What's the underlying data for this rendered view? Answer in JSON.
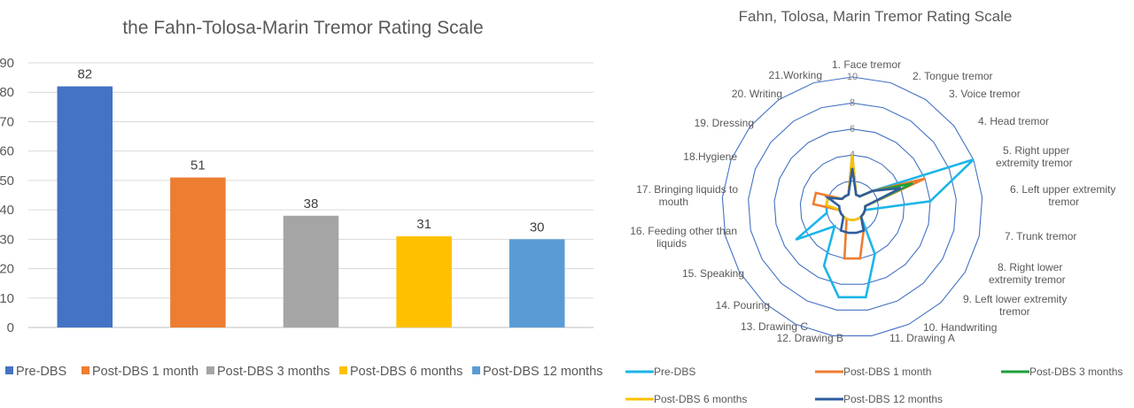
{
  "chart_data": [
    {
      "type": "bar",
      "title": "the Fahn-Tolosa-Marin Tremor Rating Scale",
      "categories": [
        "Pre-DBS",
        "Post-DBS 1 month",
        "Post-DBS 3 months",
        "Post-DBS 6 months",
        "Post-DBS 12 months"
      ],
      "values": [
        82,
        51,
        38,
        31,
        30
      ],
      "data_labels": [
        "82",
        "51",
        "38",
        "31",
        "30"
      ],
      "colors": [
        "#4472C4",
        "#ED7D31",
        "#A5A5A5",
        "#FFC000",
        "#5B9BD5"
      ],
      "ylim": [
        0,
        90
      ],
      "yticks": [
        "0",
        "10",
        "20",
        "30",
        "40",
        "50",
        "60",
        "70",
        "80",
        "90"
      ],
      "grid": true,
      "legend_position": "bottom",
      "legend": [
        {
          "label": "Pre-DBS",
          "color": "#4472C4"
        },
        {
          "label": "Post-DBS 1 month",
          "color": "#ED7D31"
        },
        {
          "label": "Post-DBS 3 months",
          "color": "#A5A5A5"
        },
        {
          "label": "Post-DBS 6 months",
          "color": "#FFC000"
        },
        {
          "label": "Post-DBS 12 months",
          "color": "#5B9BD5"
        }
      ]
    },
    {
      "type": "radar",
      "title": "Fahn, Tolosa, Marin Tremor Rating Scale",
      "axes": [
        {
          "label": "1. Face tremor"
        },
        {
          "label": "2. Tongue tremor"
        },
        {
          "label": "3. Voice tremor"
        },
        {
          "label": "4. Head tremor"
        },
        {
          "label": "5. Right upper extremity tremor"
        },
        {
          "label": "6. Left upper extremity tremor"
        },
        {
          "label": "7. Trunk tremor"
        },
        {
          "label": "8. Right lower extremity tremor"
        },
        {
          "label": "9. Left lower extremity tremor"
        },
        {
          "label": "10. Handwriting"
        },
        {
          "label": "11. Drawing A"
        },
        {
          "label": "12. Drawing B"
        },
        {
          "label": "13. Drawing C"
        },
        {
          "label": "14. Pouring"
        },
        {
          "label": "15. Speaking"
        },
        {
          "label": "16. Feeding other than liquids"
        },
        {
          "label": "17. Bringing liquids to mouth"
        },
        {
          "label": "18.Hygiene"
        },
        {
          "label": "19. Dressing"
        },
        {
          "label": "20. Writing"
        },
        {
          "label": "21.Working"
        }
      ],
      "rlim": [
        0,
        10
      ],
      "rticks": [
        "4",
        "6",
        "8",
        "10"
      ],
      "legend_position": "bottom",
      "series": [
        {
          "name": "Pre-DBS",
          "color": "#1CB5E8",
          "values": [
            4,
            1,
            1,
            2,
            10,
            6,
            1,
            1,
            1,
            4,
            7,
            7,
            5,
            2,
            5,
            2,
            2,
            2,
            1,
            1,
            1
          ]
        },
        {
          "name": "Post-DBS 1 month",
          "color": "#ED7D31",
          "values": [
            4,
            1,
            1,
            2,
            6,
            1,
            1,
            1,
            1,
            2,
            4,
            4,
            1,
            1,
            1,
            1,
            3,
            3,
            1,
            1,
            1
          ]
        },
        {
          "name": "Post-DBS 3 months",
          "color": "#1E9E3A",
          "values": [
            4,
            1,
            1,
            2,
            5,
            1,
            1,
            1,
            1,
            1,
            1,
            1,
            1,
            1,
            1,
            1,
            2,
            2,
            1,
            1,
            1
          ]
        },
        {
          "name": "Post-DBS 6 months",
          "color": "#FFC000",
          "values": [
            4,
            1,
            1,
            2,
            4,
            1,
            1,
            1,
            1,
            1,
            1,
            1,
            1,
            1,
            1,
            1,
            2,
            2,
            1,
            1,
            1
          ]
        },
        {
          "name": "Post-DBS 12 months",
          "color": "#2E5C9E",
          "values": [
            3,
            1,
            1,
            2,
            4,
            1,
            1,
            1,
            1,
            2,
            2,
            2,
            2,
            1,
            1,
            1,
            1,
            2,
            1,
            1,
            1
          ]
        }
      ]
    }
  ]
}
